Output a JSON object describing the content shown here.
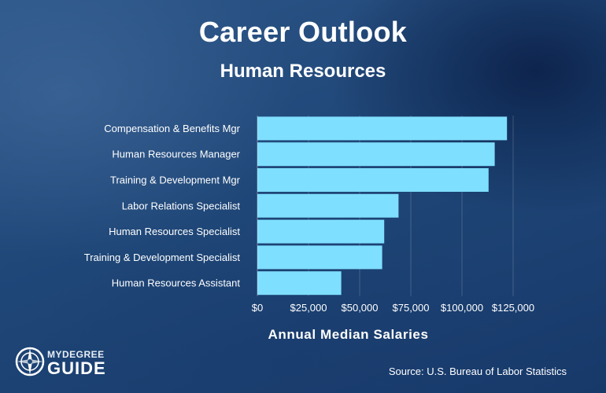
{
  "chart_data": {
    "type": "bar",
    "orientation": "horizontal",
    "title": "Career Outlook",
    "subtitle": "Human Resources",
    "xlabel": "Annual Median Salaries",
    "ylabel": "",
    "xlim": [
      0,
      130000
    ],
    "xticks": [
      0,
      25000,
      50000,
      75000,
      100000,
      125000
    ],
    "xtick_labels": [
      "$0",
      "$25,000",
      "$50,000",
      "$75,000",
      "$100,000",
      "$125,000"
    ],
    "categories": [
      "Compensation & Benefits Mgr",
      "Human Resources Manager",
      "Training & Development Mgr",
      "Labor Relations Specialist",
      "Human Resources Specialist",
      "Training & Development Specialist",
      "Human Resources Assistant"
    ],
    "values": [
      122000,
      116000,
      113000,
      69000,
      62000,
      61000,
      41000
    ],
    "bar_color": "#7fdfff",
    "grid": true,
    "legend": "none"
  },
  "footer": {
    "source": "Source: U.S. Bureau of Labor Statistics"
  },
  "logo": {
    "line1": "MYDEGREE",
    "line2": "GUIDE",
    "icon": "compass-icon"
  }
}
